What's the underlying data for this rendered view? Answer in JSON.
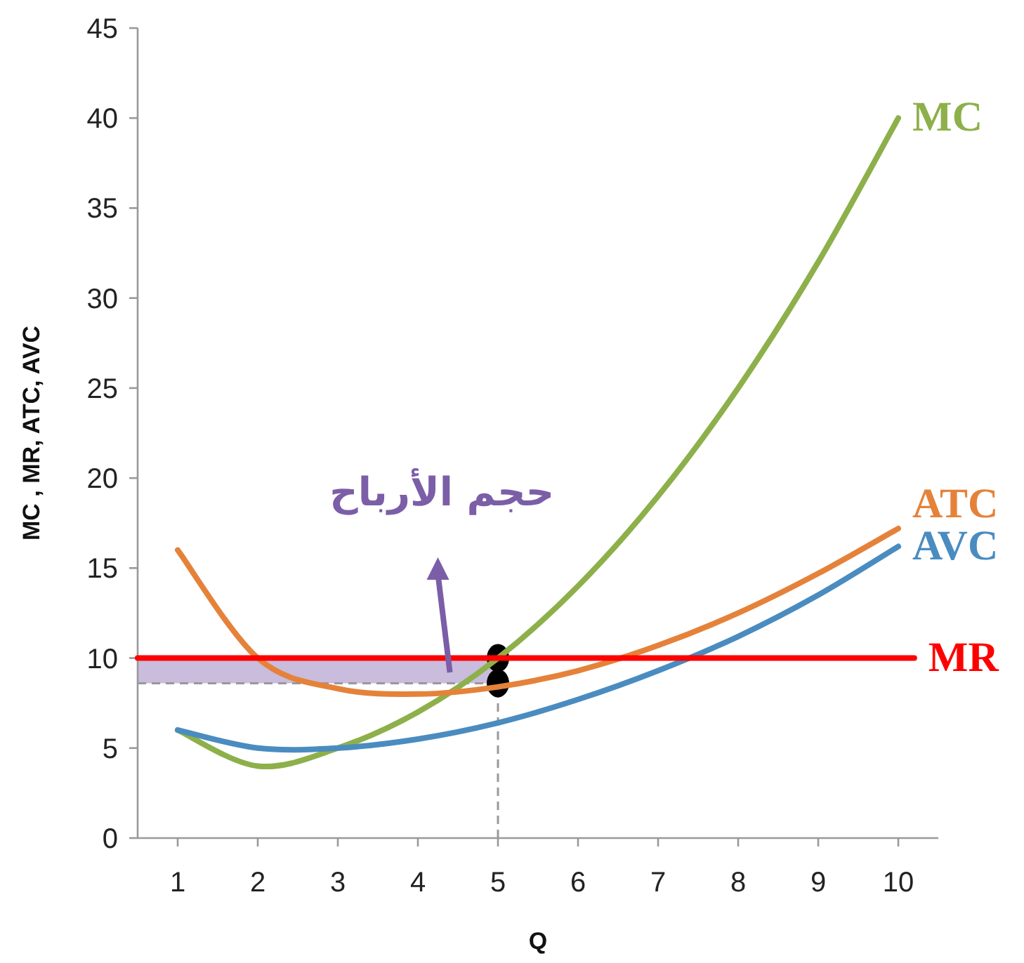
{
  "chart_data": {
    "type": "line",
    "xlabel": "Q",
    "ylabel": "MC , MR, ATC, AVC",
    "x": [
      1,
      2,
      3,
      4,
      5,
      6,
      7,
      8,
      9,
      10
    ],
    "xlim": [
      0.5,
      10.5
    ],
    "xticks": [
      1,
      2,
      3,
      4,
      5,
      6,
      7,
      8,
      9,
      10
    ],
    "ylim": [
      0,
      45
    ],
    "yticks": [
      0,
      5,
      10,
      15,
      20,
      25,
      30,
      35,
      40,
      45
    ],
    "grid": false,
    "legend": false,
    "marker": "none",
    "line_style": "solid",
    "series": [
      {
        "name": "MC",
        "color": "#8db04a",
        "values": [
          6,
          4,
          5,
          7,
          10,
          14,
          19,
          25,
          32,
          40
        ]
      },
      {
        "name": "ATC",
        "color": "#e5823a",
        "values": [
          16,
          10,
          8.3,
          8,
          8.4,
          9.3,
          10.7,
          12.5,
          14.7,
          17.2
        ]
      },
      {
        "name": "AVC",
        "color": "#4a8cc0",
        "values": [
          6,
          5,
          5,
          5.5,
          6.4,
          7.7,
          9.3,
          11.2,
          13.5,
          16.2
        ]
      },
      {
        "name": "MR",
        "color": "#ff0000",
        "x": [
          0.5,
          10.2
        ],
        "values": [
          10,
          10
        ]
      },
      {
        "type": "scatter",
        "marker": "circle",
        "color": "#000000",
        "x": [
          5,
          5
        ],
        "values": [
          10,
          8.6
        ]
      }
    ],
    "ref_lines": [
      {
        "axis": "x",
        "value": 5,
        "color": "#999999",
        "line_style": "dashed"
      },
      {
        "axis": "y",
        "value": 8.6,
        "color": "#999999",
        "line_style": "dashed"
      }
    ],
    "bands": [
      {
        "axis": "y",
        "from": 8.6,
        "to": 10,
        "color": "#c9bcdc"
      }
    ],
    "annotations": [
      "حجم الأرباح"
    ]
  }
}
